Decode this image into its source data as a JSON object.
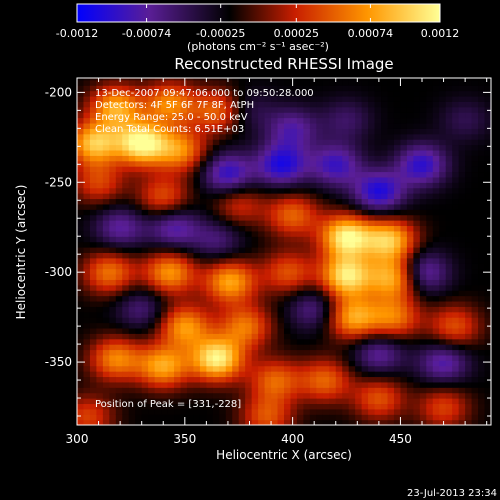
{
  "chart_data": {
    "type": "heatmap",
    "title": "Reconstructed RHESSI Image",
    "xlabel": "Heliocentric X (arcsec)",
    "ylabel": "Heliocentric Y (arcsec)",
    "xlim": [
      300,
      492
    ],
    "ylim": [
      -385,
      -192
    ],
    "x_ticks": [
      "300",
      "350",
      "400",
      "450"
    ],
    "x_tick_values": [
      300,
      350,
      400,
      450
    ],
    "y_ticks": [
      "-200",
      "-250",
      "-300",
      "-350"
    ],
    "y_tick_values": [
      -200,
      -250,
      -300,
      -350
    ],
    "colorbar": {
      "min": -0.0012,
      "max": 0.0012,
      "tick_labels": [
        "-0.0012",
        "-0.00074",
        "-0.00025",
        "0.00025",
        "0.00074",
        "0.0012"
      ],
      "tick_values": [
        -0.0012,
        -0.00074,
        -0.00025,
        0.00025,
        0.00074,
        0.0012
      ],
      "unit_label": "(photons cm⁻² s⁻¹ asec⁻²)",
      "colors": [
        "#0000ff",
        "#5a1e96",
        "#000000",
        "#c81e00",
        "#ff9600",
        "#ffff96"
      ]
    },
    "annotations": [
      "13-Dec-2007 09:47:06.000 to 09:50:28.000",
      "Detectors: 4F 5F 6F 7F 8F, AtPH",
      "Energy Range: 25.0 - 50.0 keV",
      "Clean    Total Counts: 6.51E+03"
    ],
    "peak_label": "Position of Peak = [331,-228]",
    "peak": [
      331,
      -228
    ],
    "hotspots": [
      {
        "x": 330,
        "y": -228,
        "v": 1.0
      },
      {
        "x": 308,
        "y": -228,
        "v": 0.8
      },
      {
        "x": 348,
        "y": -232,
        "v": 0.6
      },
      {
        "x": 318,
        "y": -208,
        "v": 0.7
      },
      {
        "x": 343,
        "y": -206,
        "v": 0.6
      },
      {
        "x": 365,
        "y": -210,
        "v": 0.5
      },
      {
        "x": 310,
        "y": -250,
        "v": 0.4
      },
      {
        "x": 340,
        "y": -258,
        "v": 0.45
      },
      {
        "x": 375,
        "y": -262,
        "v": 0.35
      },
      {
        "x": 400,
        "y": -268,
        "v": 0.5
      },
      {
        "x": 315,
        "y": -300,
        "v": 0.55
      },
      {
        "x": 343,
        "y": -300,
        "v": 0.65
      },
      {
        "x": 371,
        "y": -305,
        "v": 0.7
      },
      {
        "x": 398,
        "y": -300,
        "v": 0.45
      },
      {
        "x": 425,
        "y": -280,
        "v": 0.95
      },
      {
        "x": 445,
        "y": -282,
        "v": 0.8
      },
      {
        "x": 425,
        "y": -302,
        "v": 0.9
      },
      {
        "x": 447,
        "y": -303,
        "v": 0.75
      },
      {
        "x": 428,
        "y": -325,
        "v": 0.7
      },
      {
        "x": 447,
        "y": -325,
        "v": 0.55
      },
      {
        "x": 365,
        "y": -348,
        "v": 0.95
      },
      {
        "x": 340,
        "y": -352,
        "v": 0.7
      },
      {
        "x": 318,
        "y": -348,
        "v": 0.6
      },
      {
        "x": 350,
        "y": -330,
        "v": 0.65
      },
      {
        "x": 378,
        "y": -330,
        "v": 0.55
      },
      {
        "x": 392,
        "y": -360,
        "v": 0.5
      },
      {
        "x": 388,
        "y": -380,
        "v": 0.45
      },
      {
        "x": 305,
        "y": -380,
        "v": 0.4
      },
      {
        "x": 415,
        "y": -360,
        "v": 0.5
      },
      {
        "x": 440,
        "y": -370,
        "v": 0.45
      },
      {
        "x": 475,
        "y": -330,
        "v": 0.45
      },
      {
        "x": 470,
        "y": -375,
        "v": 0.4
      },
      {
        "x": 460,
        "y": -240,
        "v": -0.55
      },
      {
        "x": 440,
        "y": -255,
        "v": -0.6
      },
      {
        "x": 420,
        "y": -240,
        "v": -0.5
      },
      {
        "x": 395,
        "y": -240,
        "v": -0.6
      },
      {
        "x": 370,
        "y": -245,
        "v": -0.55
      },
      {
        "x": 345,
        "y": -275,
        "v": -0.45
      },
      {
        "x": 320,
        "y": -275,
        "v": -0.4
      },
      {
        "x": 400,
        "y": -220,
        "v": -0.4
      },
      {
        "x": 460,
        "y": -300,
        "v": -0.5
      },
      {
        "x": 470,
        "y": -350,
        "v": -0.45
      },
      {
        "x": 440,
        "y": -345,
        "v": -0.4
      },
      {
        "x": 410,
        "y": -320,
        "v": -0.35
      },
      {
        "x": 330,
        "y": -320,
        "v": -0.3
      },
      {
        "x": 365,
        "y": -282,
        "v": -0.3
      },
      {
        "x": 380,
        "y": -210,
        "v": -0.2
      },
      {
        "x": 425,
        "y": -215,
        "v": -0.25
      },
      {
        "x": 480,
        "y": -215,
        "v": -0.2
      }
    ]
  },
  "footer": {
    "timestamp": "23-Jul-2013 23:34"
  }
}
